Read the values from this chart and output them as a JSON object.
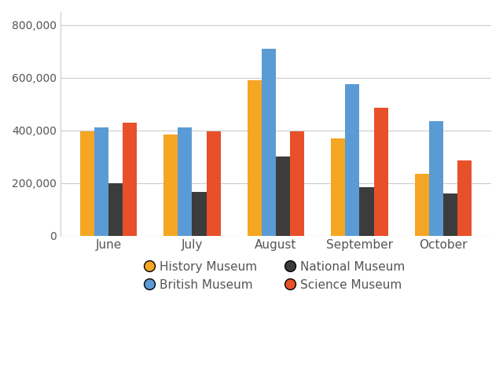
{
  "months": [
    "June",
    "July",
    "August",
    "September",
    "October"
  ],
  "museums": [
    "History Museum",
    "British Museum",
    "National Museum",
    "Science Museum"
  ],
  "colors": [
    "#F5A623",
    "#5B9BD5",
    "#3C3C3C",
    "#E8502A"
  ],
  "values": {
    "History Museum": [
      395000,
      385000,
      590000,
      370000,
      235000
    ],
    "British Museum": [
      410000,
      410000,
      710000,
      575000,
      435000
    ],
    "National Museum": [
      200000,
      165000,
      300000,
      185000,
      160000
    ],
    "Science Museum": [
      430000,
      395000,
      395000,
      485000,
      285000
    ]
  },
  "ylim": [
    0,
    850000
  ],
  "yticks": [
    0,
    200000,
    400000,
    600000,
    800000
  ],
  "bar_width": 0.17,
  "background_color": "#ffffff",
  "grid_color": "#cccccc",
  "legend_ncol": 2,
  "figsize": [
    6.4,
    4.73
  ],
  "dpi": 100,
  "tick_color": "#555555",
  "label_fontsize": 11
}
